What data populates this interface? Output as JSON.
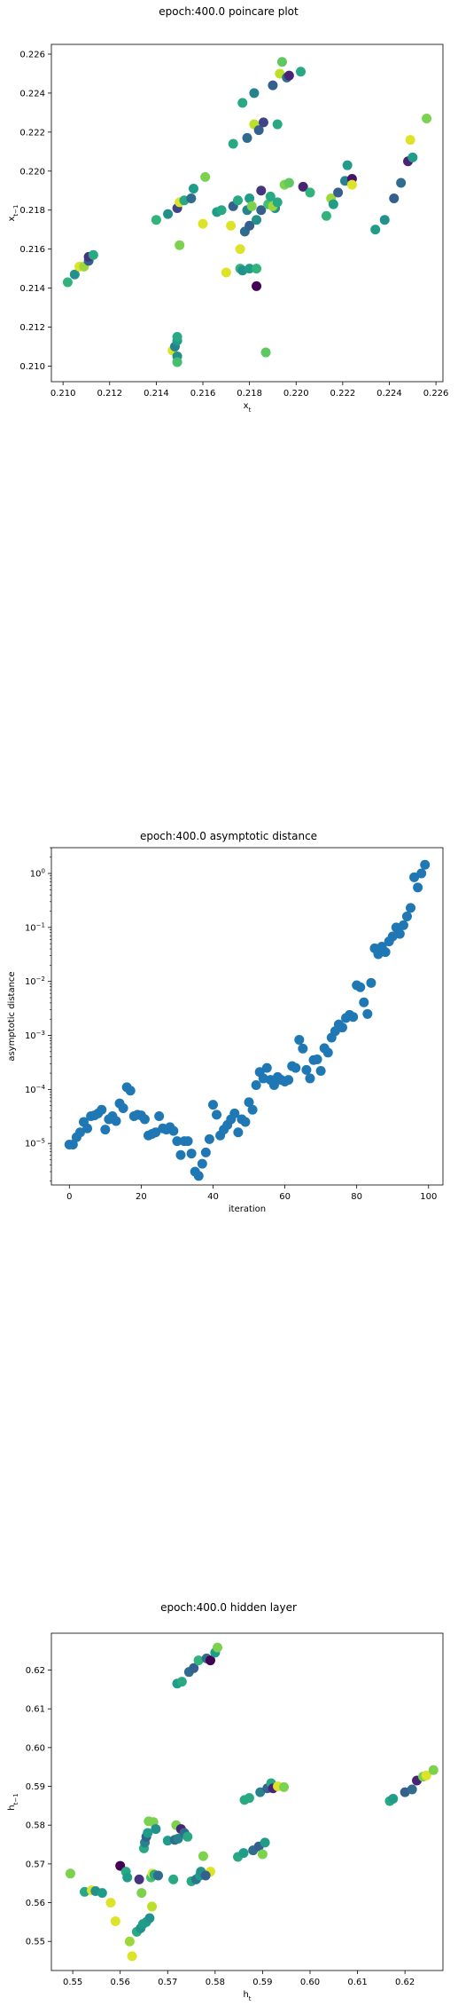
{
  "chart_data": [
    {
      "type": "scatter",
      "title": "epoch:400.0 poincare plot",
      "xlabel": "x_t",
      "ylabel": "x_{t-1}",
      "xlim": [
        0.2095,
        0.2263
      ],
      "ylim": [
        0.2092,
        0.2265
      ],
      "xticks": [
        "0.210",
        "0.212",
        "0.214",
        "0.216",
        "0.218",
        "0.220",
        "0.222",
        "0.224",
        "0.226"
      ],
      "yticks": [
        "0.210",
        "0.212",
        "0.214",
        "0.216",
        "0.218",
        "0.220",
        "0.222",
        "0.224",
        "0.226"
      ],
      "colormap": "viridis",
      "points": [
        {
          "x": 0.2102,
          "y": 0.2143,
          "c": 0.65
        },
        {
          "x": 0.2105,
          "y": 0.2147,
          "c": 0.5
        },
        {
          "x": 0.2107,
          "y": 0.2151,
          "c": 0.95
        },
        {
          "x": 0.2109,
          "y": 0.2151,
          "c": 0.85
        },
        {
          "x": 0.2111,
          "y": 0.2154,
          "c": 0.3
        },
        {
          "x": 0.2111,
          "y": 0.2156,
          "c": 0.15
        },
        {
          "x": 0.2113,
          "y": 0.2157,
          "c": 0.6
        },
        {
          "x": 0.2147,
          "y": 0.2108,
          "c": 0.95
        },
        {
          "x": 0.2148,
          "y": 0.211,
          "c": 0.45
        },
        {
          "x": 0.2149,
          "y": 0.2113,
          "c": 0.55
        },
        {
          "x": 0.2149,
          "y": 0.2115,
          "c": 0.6
        },
        {
          "x": 0.2149,
          "y": 0.2105,
          "c": 0.5
        },
        {
          "x": 0.2149,
          "y": 0.2102,
          "c": 0.7
        },
        {
          "x": 0.214,
          "y": 0.2175,
          "c": 0.65
        },
        {
          "x": 0.2145,
          "y": 0.2178,
          "c": 0.5
        },
        {
          "x": 0.2149,
          "y": 0.2181,
          "c": 0.2
        },
        {
          "x": 0.215,
          "y": 0.2184,
          "c": 0.95
        },
        {
          "x": 0.2152,
          "y": 0.2185,
          "c": 0.6
        },
        {
          "x": 0.2155,
          "y": 0.2186,
          "c": 0.35
        },
        {
          "x": 0.2156,
          "y": 0.2191,
          "c": 0.55
        },
        {
          "x": 0.2161,
          "y": 0.2197,
          "c": 0.8
        },
        {
          "x": 0.215,
          "y": 0.2162,
          "c": 0.8
        },
        {
          "x": 0.216,
          "y": 0.2173,
          "c": 0.95
        },
        {
          "x": 0.2166,
          "y": 0.2179,
          "c": 0.55
        },
        {
          "x": 0.2168,
          "y": 0.218,
          "c": 0.6
        },
        {
          "x": 0.217,
          "y": 0.2148,
          "c": 0.95
        },
        {
          "x": 0.2172,
          "y": 0.2172,
          "c": 0.95
        },
        {
          "x": 0.2173,
          "y": 0.2182,
          "c": 0.3
        },
        {
          "x": 0.2173,
          "y": 0.2214,
          "c": 0.6
        },
        {
          "x": 0.2175,
          "y": 0.2185,
          "c": 0.6
        },
        {
          "x": 0.2176,
          "y": 0.215,
          "c": 0.65
        },
        {
          "x": 0.2176,
          "y": 0.216,
          "c": 0.95
        },
        {
          "x": 0.2177,
          "y": 0.2235,
          "c": 0.6
        },
        {
          "x": 0.2177,
          "y": 0.2149,
          "c": 0.5
        },
        {
          "x": 0.2178,
          "y": 0.2169,
          "c": 0.35
        },
        {
          "x": 0.2179,
          "y": 0.218,
          "c": 0.45
        },
        {
          "x": 0.2179,
          "y": 0.2217,
          "c": 0.35
        },
        {
          "x": 0.218,
          "y": 0.215,
          "c": 0.55
        },
        {
          "x": 0.218,
          "y": 0.2172,
          "c": 0.3
        },
        {
          "x": 0.218,
          "y": 0.2186,
          "c": 0.55
        },
        {
          "x": 0.2181,
          "y": 0.2182,
          "c": 0.8
        },
        {
          "x": 0.2182,
          "y": 0.2224,
          "c": 0.9
        },
        {
          "x": 0.2182,
          "y": 0.224,
          "c": 0.45
        },
        {
          "x": 0.2183,
          "y": 0.2141,
          "c": 0.0
        },
        {
          "x": 0.2183,
          "y": 0.215,
          "c": 0.65
        },
        {
          "x": 0.2183,
          "y": 0.2175,
          "c": 0.5
        },
        {
          "x": 0.2184,
          "y": 0.2221,
          "c": 0.3
        },
        {
          "x": 0.2185,
          "y": 0.218,
          "c": 0.3
        },
        {
          "x": 0.2185,
          "y": 0.219,
          "c": 0.15
        },
        {
          "x": 0.2186,
          "y": 0.2225,
          "c": 0.2
        },
        {
          "x": 0.2187,
          "y": 0.2107,
          "c": 0.75
        },
        {
          "x": 0.2188,
          "y": 0.2183,
          "c": 0.7
        },
        {
          "x": 0.2189,
          "y": 0.2187,
          "c": 0.6
        },
        {
          "x": 0.219,
          "y": 0.2244,
          "c": 0.3
        },
        {
          "x": 0.2191,
          "y": 0.2181,
          "c": 0.5
        },
        {
          "x": 0.2192,
          "y": 0.2224,
          "c": 0.6
        },
        {
          "x": 0.2193,
          "y": 0.225,
          "c": 0.9
        },
        {
          "x": 0.2194,
          "y": 0.2256,
          "c": 0.75
        },
        {
          "x": 0.2195,
          "y": 0.2193,
          "c": 0.8
        },
        {
          "x": 0.2196,
          "y": 0.2248,
          "c": 0.35
        },
        {
          "x": 0.2197,
          "y": 0.2249,
          "c": 0.1
        },
        {
          "x": 0.2197,
          "y": 0.2194,
          "c": 0.75
        },
        {
          "x": 0.219,
          "y": 0.2182,
          "c": 0.85
        },
        {
          "x": 0.2192,
          "y": 0.2184,
          "c": 0.6
        },
        {
          "x": 0.2202,
          "y": 0.2251,
          "c": 0.6
        },
        {
          "x": 0.2203,
          "y": 0.2192,
          "c": 0.1
        },
        {
          "x": 0.2206,
          "y": 0.2189,
          "c": 0.65
        },
        {
          "x": 0.2213,
          "y": 0.2177,
          "c": 0.65
        },
        {
          "x": 0.2215,
          "y": 0.2186,
          "c": 0.85
        },
        {
          "x": 0.2216,
          "y": 0.2183,
          "c": 0.55
        },
        {
          "x": 0.2218,
          "y": 0.2189,
          "c": 0.3
        },
        {
          "x": 0.2221,
          "y": 0.2195,
          "c": 0.45
        },
        {
          "x": 0.2222,
          "y": 0.2203,
          "c": 0.55
        },
        {
          "x": 0.2224,
          "y": 0.2196,
          "c": 0.05
        },
        {
          "x": 0.2224,
          "y": 0.2193,
          "c": 0.95
        },
        {
          "x": 0.2234,
          "y": 0.217,
          "c": 0.55
        },
        {
          "x": 0.2238,
          "y": 0.2175,
          "c": 0.5
        },
        {
          "x": 0.2242,
          "y": 0.2186,
          "c": 0.3
        },
        {
          "x": 0.2245,
          "y": 0.2194,
          "c": 0.35
        },
        {
          "x": 0.2248,
          "y": 0.2205,
          "c": 0.1
        },
        {
          "x": 0.2249,
          "y": 0.2216,
          "c": 0.95
        },
        {
          "x": 0.225,
          "y": 0.2207,
          "c": 0.55
        },
        {
          "x": 0.2256,
          "y": 0.2227,
          "c": 0.8
        }
      ]
    },
    {
      "type": "scatter",
      "title": "epoch:400.0 asymptotic distance",
      "xlabel": "iteration",
      "ylabel": "asymptotic distance",
      "yscale": "log",
      "xlim": [
        -5,
        104
      ],
      "ylim": [
        1.7e-06,
        3
      ],
      "xticks": [
        "0",
        "20",
        "40",
        "60",
        "80",
        "100"
      ],
      "yticks": [
        "10^-5",
        "10^-4",
        "10^-3",
        "10^-2",
        "10^-1",
        "10^0"
      ],
      "color": "#1f77b4",
      "x": [
        0,
        1,
        2,
        3,
        4,
        5,
        6,
        7,
        8,
        9,
        10,
        11,
        12,
        13,
        14,
        15,
        16,
        17,
        18,
        19,
        20,
        21,
        22,
        23,
        24,
        25,
        26,
        27,
        28,
        29,
        30,
        31,
        32,
        33,
        34,
        35,
        36,
        37,
        38,
        39,
        40,
        41,
        42,
        43,
        44,
        45,
        46,
        47,
        48,
        49,
        50,
        51,
        52,
        53,
        54,
        55,
        56,
        57,
        58,
        59,
        60,
        61,
        62,
        63,
        64,
        65,
        66,
        67,
        68,
        69,
        70,
        71,
        72,
        73,
        74,
        75,
        76,
        77,
        78,
        79,
        80,
        81,
        82,
        83,
        84,
        85,
        86,
        87,
        88,
        89,
        90,
        91,
        92,
        93,
        94,
        95,
        96,
        97,
        98,
        99
      ],
      "y": [
        9.5e-06,
        9.5e-06,
        1.3e-05,
        1.6e-05,
        2.5e-05,
        1.9e-05,
        3.2e-05,
        3.3e-05,
        3.6e-05,
        4.2e-05,
        1.8e-05,
        2.8e-05,
        3.2e-05,
        2.6e-05,
        5.5e-05,
        4.5e-05,
        0.00011,
        9.5e-05,
        3.2e-05,
        3.4e-05,
        3.3e-05,
        2.8e-05,
        1.4e-05,
        1.5e-05,
        1.6e-05,
        3.2e-05,
        1.9e-05,
        1.8e-05,
        2e-05,
        1.7e-05,
        1.1e-05,
        6.1e-06,
        1.1e-05,
        1.1e-05,
        6.5e-06,
        3e-06,
        2.5e-06,
        4.2e-06,
        6.8e-06,
        1.2e-05,
        5.2e-05,
        3.4e-05,
        1.4e-05,
        1.8e-05,
        2.2e-05,
        2.8e-05,
        3.6e-05,
        1.6e-05,
        2.8e-05,
        2.5e-05,
        5.8e-05,
        4.2e-05,
        0.00012,
        0.00021,
        0.00016,
        0.00025,
        0.00015,
        0.00012,
        0.00017,
        0.00015,
        0.00014,
        0.00015,
        0.00027,
        0.00025,
        0.00083,
        0.00057,
        0.00023,
        0.00016,
        0.00035,
        0.00036,
        0.00022,
        0.00058,
        0.00048,
        0.00091,
        0.0012,
        0.0016,
        0.0014,
        0.0021,
        0.0024,
        0.0022,
        0.0085,
        0.0078,
        0.0041,
        0.0025,
        0.0094,
        0.041,
        0.032,
        0.044,
        0.035,
        0.055,
        0.068,
        0.1,
        0.076,
        0.11,
        0.16,
        0.23,
        0.85,
        0.55,
        1.0,
        1.45
      ]
    },
    {
      "type": "scatter",
      "title": "epoch:400.0 hidden layer",
      "xlabel": "h_t",
      "ylabel": "h_{t-1}",
      "xlim": [
        0.5455,
        0.628
      ],
      "ylim": [
        0.5425,
        0.6295
      ],
      "xticks": [
        "0.55",
        "0.56",
        "0.57",
        "0.58",
        "0.59",
        "0.60",
        "0.61",
        "0.62"
      ],
      "yticks": [
        "0.55",
        "0.56",
        "0.57",
        "0.58",
        "0.59",
        "0.60",
        "0.61",
        "0.62"
      ],
      "colormap": "viridis",
      "points": [
        {
          "x": 0.5495,
          "y": 0.5675,
          "c": 0.8
        },
        {
          "x": 0.5525,
          "y": 0.5628,
          "c": 0.6
        },
        {
          "x": 0.554,
          "y": 0.5632,
          "c": 0.95
        },
        {
          "x": 0.5548,
          "y": 0.563,
          "c": 0.5
        },
        {
          "x": 0.5562,
          "y": 0.5625,
          "c": 0.55
        },
        {
          "x": 0.558,
          "y": 0.56,
          "c": 0.95
        },
        {
          "x": 0.559,
          "y": 0.5552,
          "c": 0.95
        },
        {
          "x": 0.56,
          "y": 0.5695,
          "c": 0.0
        },
        {
          "x": 0.5612,
          "y": 0.568,
          "c": 0.6
        },
        {
          "x": 0.5615,
          "y": 0.5665,
          "c": 0.55
        },
        {
          "x": 0.562,
          "y": 0.55,
          "c": 0.85
        },
        {
          "x": 0.5625,
          "y": 0.5462,
          "c": 0.95
        },
        {
          "x": 0.5635,
          "y": 0.5525,
          "c": 0.6
        },
        {
          "x": 0.564,
          "y": 0.566,
          "c": 0.15
        },
        {
          "x": 0.5643,
          "y": 0.5534,
          "c": 0.5
        },
        {
          "x": 0.5645,
          "y": 0.5625,
          "c": 0.8
        },
        {
          "x": 0.5648,
          "y": 0.5545,
          "c": 0.55
        },
        {
          "x": 0.565,
          "y": 0.574,
          "c": 0.6
        },
        {
          "x": 0.5652,
          "y": 0.5755,
          "c": 0.45
        },
        {
          "x": 0.5655,
          "y": 0.555,
          "c": 0.55
        },
        {
          "x": 0.5655,
          "y": 0.577,
          "c": 0.3
        },
        {
          "x": 0.5658,
          "y": 0.578,
          "c": 0.55
        },
        {
          "x": 0.566,
          "y": 0.581,
          "c": 0.8
        },
        {
          "x": 0.5662,
          "y": 0.556,
          "c": 0.5
        },
        {
          "x": 0.5665,
          "y": 0.5665,
          "c": 0.7
        },
        {
          "x": 0.5667,
          "y": 0.559,
          "c": 0.9
        },
        {
          "x": 0.5668,
          "y": 0.5675,
          "c": 0.95
        },
        {
          "x": 0.567,
          "y": 0.5808,
          "c": 0.8
        },
        {
          "x": 0.5672,
          "y": 0.5672,
          "c": 0.6
        },
        {
          "x": 0.5675,
          "y": 0.579,
          "c": 0.5
        },
        {
          "x": 0.568,
          "y": 0.567,
          "c": 0.35
        },
        {
          "x": 0.57,
          "y": 0.576,
          "c": 0.55
        },
        {
          "x": 0.5712,
          "y": 0.566,
          "c": 0.6
        },
        {
          "x": 0.5715,
          "y": 0.5762,
          "c": 0.35
        },
        {
          "x": 0.5718,
          "y": 0.58,
          "c": 0.8
        },
        {
          "x": 0.5722,
          "y": 0.5765,
          "c": 0.45
        },
        {
          "x": 0.5728,
          "y": 0.579,
          "c": 0.1
        },
        {
          "x": 0.5735,
          "y": 0.578,
          "c": 0.35
        },
        {
          "x": 0.5742,
          "y": 0.577,
          "c": 0.6
        },
        {
          "x": 0.575,
          "y": 0.5655,
          "c": 0.6
        },
        {
          "x": 0.576,
          "y": 0.566,
          "c": 0.4
        },
        {
          "x": 0.5768,
          "y": 0.567,
          "c": 0.55
        },
        {
          "x": 0.577,
          "y": 0.568,
          "c": 0.5
        },
        {
          "x": 0.5775,
          "y": 0.572,
          "c": 0.8
        },
        {
          "x": 0.579,
          "y": 0.568,
          "c": 0.95
        },
        {
          "x": 0.578,
          "y": 0.567,
          "c": 0.3
        },
        {
          "x": 0.572,
          "y": 0.6165,
          "c": 0.55
        },
        {
          "x": 0.573,
          "y": 0.617,
          "c": 0.6
        },
        {
          "x": 0.5745,
          "y": 0.6195,
          "c": 0.35
        },
        {
          "x": 0.5755,
          "y": 0.6205,
          "c": 0.3
        },
        {
          "x": 0.5765,
          "y": 0.6225,
          "c": 0.65
        },
        {
          "x": 0.5782,
          "y": 0.623,
          "c": 0.35
        },
        {
          "x": 0.579,
          "y": 0.6225,
          "c": 0.0
        },
        {
          "x": 0.58,
          "y": 0.6245,
          "c": 0.55
        },
        {
          "x": 0.5805,
          "y": 0.6258,
          "c": 0.8
        },
        {
          "x": 0.5848,
          "y": 0.5718,
          "c": 0.6
        },
        {
          "x": 0.586,
          "y": 0.5728,
          "c": 0.55
        },
        {
          "x": 0.5862,
          "y": 0.5865,
          "c": 0.6
        },
        {
          "x": 0.5872,
          "y": 0.587,
          "c": 0.6
        },
        {
          "x": 0.588,
          "y": 0.5735,
          "c": 0.35
        },
        {
          "x": 0.5892,
          "y": 0.5745,
          "c": 0.3
        },
        {
          "x": 0.5895,
          "y": 0.5885,
          "c": 0.45
        },
        {
          "x": 0.59,
          "y": 0.5725,
          "c": 0.8
        },
        {
          "x": 0.5905,
          "y": 0.5755,
          "c": 0.55
        },
        {
          "x": 0.591,
          "y": 0.5895,
          "c": 0.3
        },
        {
          "x": 0.5918,
          "y": 0.5908,
          "c": 0.6
        },
        {
          "x": 0.5922,
          "y": 0.5895,
          "c": 0.1
        },
        {
          "x": 0.5932,
          "y": 0.59,
          "c": 0.95
        },
        {
          "x": 0.5945,
          "y": 0.5898,
          "c": 0.8
        },
        {
          "x": 0.6168,
          "y": 0.5862,
          "c": 0.6
        },
        {
          "x": 0.6175,
          "y": 0.5868,
          "c": 0.55
        },
        {
          "x": 0.62,
          "y": 0.5885,
          "c": 0.3
        },
        {
          "x": 0.6215,
          "y": 0.5892,
          "c": 0.35
        },
        {
          "x": 0.6225,
          "y": 0.5915,
          "c": 0.1
        },
        {
          "x": 0.6238,
          "y": 0.5925,
          "c": 0.8
        },
        {
          "x": 0.6245,
          "y": 0.5928,
          "c": 0.95
        },
        {
          "x": 0.626,
          "y": 0.5942,
          "c": 0.8
        }
      ]
    }
  ]
}
